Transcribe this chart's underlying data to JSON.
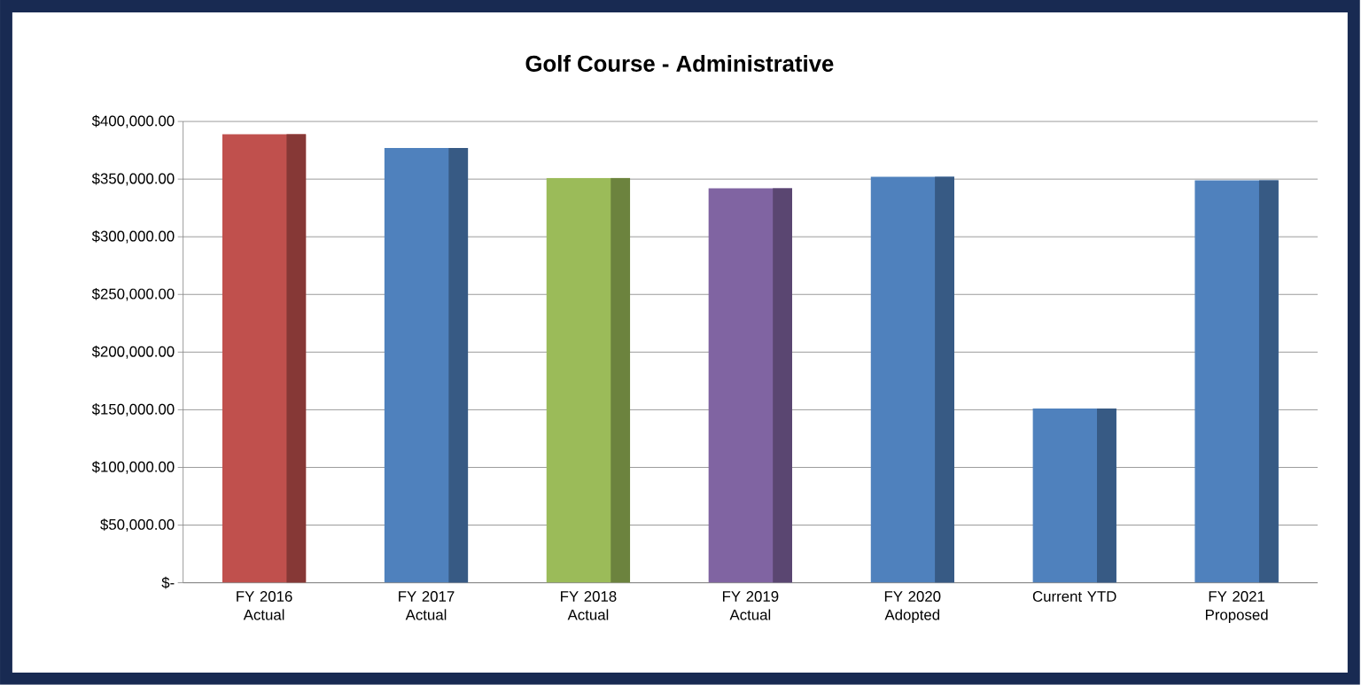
{
  "chart_data": {
    "type": "bar",
    "title": "Golf Course - Administrative",
    "categories": [
      "FY 2016 Actual",
      "FY 2017 Actual",
      "FY 2018 Actual",
      "FY 2019 Actual",
      "FY 2020 Adopted",
      "Current YTD",
      "FY 2021 Proposed"
    ],
    "values": [
      389000,
      377000,
      351000,
      342000,
      352000,
      151000,
      349000
    ],
    "colors": [
      "#c0504d",
      "#4f81bd",
      "#9bbb59",
      "#8064a2",
      "#4f81bd",
      "#4f81bd",
      "#4f81bd"
    ],
    "ylim": [
      0,
      400000
    ],
    "yticks": [
      {
        "value": 0,
        "label": "$-"
      },
      {
        "value": 50000,
        "label": "$50,000.00"
      },
      {
        "value": 100000,
        "label": "$100,000.00"
      },
      {
        "value": 150000,
        "label": "$150,000.00"
      },
      {
        "value": 200000,
        "label": "$200,000.00"
      },
      {
        "value": 250000,
        "label": "$250,000.00"
      },
      {
        "value": 300000,
        "label": "$300,000.00"
      },
      {
        "value": 350000,
        "label": "$350,000.00"
      },
      {
        "value": 400000,
        "label": "$400,000.00"
      }
    ],
    "grid": "y"
  }
}
